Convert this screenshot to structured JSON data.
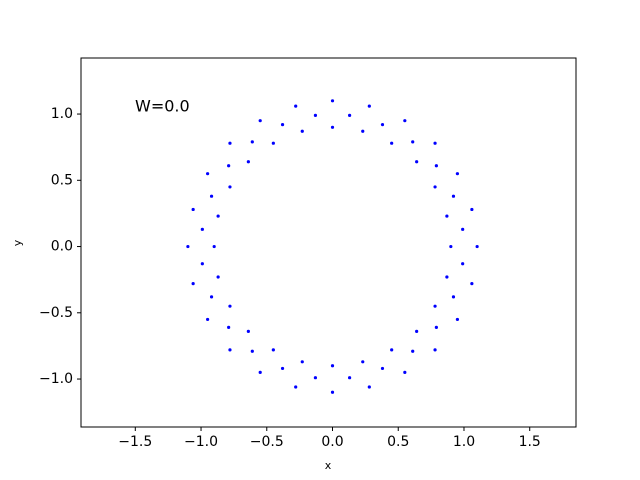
{
  "chart_data": {
    "type": "scatter",
    "annotation": "W=0.0",
    "xlabel": "x",
    "ylabel": "y",
    "color": "#0000ff",
    "xlim": [
      -1.913,
      1.852
    ],
    "ylim": [
      -1.362,
      1.423
    ],
    "xticks": [
      {
        "value": -1.5,
        "label": "−1.5"
      },
      {
        "value": -1.0,
        "label": "−1.0"
      },
      {
        "value": -0.5,
        "label": "−0.5"
      },
      {
        "value": 0,
        "label": "0.0"
      },
      {
        "value": 0.5,
        "label": "0.5"
      },
      {
        "value": 1.0,
        "label": "1.0"
      },
      {
        "value": 1.5,
        "label": "1.5"
      }
    ],
    "yticks": [
      {
        "value": -1.0,
        "label": "−1.0"
      },
      {
        "value": -0.5,
        "label": "−0.5"
      },
      {
        "value": 0,
        "label": "0.0"
      },
      {
        "value": 0.5,
        "label": "0.5"
      },
      {
        "value": 1.0,
        "label": "1.0"
      }
    ],
    "x": [
      0.9,
      0.87,
      0.78,
      0.64,
      0.45,
      0.23,
      0,
      -0.23,
      -0.45,
      -0.64,
      -0.78,
      -0.87,
      -0.9,
      -0.87,
      -0.78,
      -0.64,
      -0.45,
      -0.23,
      0,
      0.23,
      0.45,
      0.64,
      0.78,
      0.87,
      1.1,
      1.06,
      0.95,
      0.78,
      0.55,
      0.28,
      0,
      -0.28,
      -0.55,
      -0.78,
      -0.95,
      -1.06,
      -1.1,
      -1.06,
      -0.95,
      -0.78,
      -0.55,
      -0.28,
      0,
      0.28,
      0.55,
      0.78,
      0.95,
      1.06,
      0.99,
      0.92,
      0.79,
      0.61,
      0.38,
      0.13,
      -0.13,
      -0.38,
      -0.61,
      -0.79,
      -0.92,
      -0.99,
      -0.99,
      -0.92,
      -0.79,
      -0.61,
      -0.38,
      -0.13,
      0.13,
      0.38,
      0.61,
      0.79,
      0.92,
      0.99
    ],
    "y": [
      0,
      0.23,
      0.45,
      0.64,
      0.78,
      0.87,
      0.9,
      0.87,
      0.78,
      0.64,
      0.45,
      0.23,
      0,
      -0.23,
      -0.45,
      -0.64,
      -0.78,
      -0.87,
      -0.9,
      -0.87,
      -0.78,
      -0.64,
      -0.45,
      -0.23,
      0,
      0.28,
      0.55,
      0.78,
      0.95,
      1.06,
      1.1,
      1.06,
      0.95,
      0.78,
      0.55,
      0.28,
      0,
      -0.28,
      -0.55,
      -0.78,
      -0.95,
      -1.06,
      -1.1,
      -1.06,
      -0.95,
      -0.78,
      -0.55,
      -0.28,
      0.13,
      0.38,
      0.61,
      0.79,
      0.92,
      0.99,
      0.99,
      0.92,
      0.79,
      0.61,
      0.38,
      0.13,
      -0.13,
      -0.38,
      -0.61,
      -0.79,
      -0.92,
      -0.99,
      -0.99,
      -0.92,
      -0.79,
      -0.61,
      -0.38,
      -0.13
    ]
  }
}
